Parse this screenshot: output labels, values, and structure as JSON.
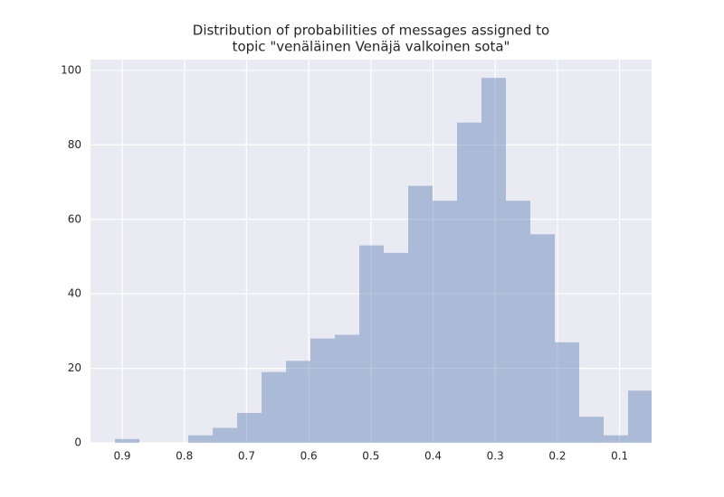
{
  "chart_data": {
    "type": "histogram",
    "title": [
      "Distribution of probabilities of messages assigned to",
      "topic \"venäläinen Venäjä valkoinen sota\""
    ],
    "bins": [
      0.9116,
      0.8723,
      0.833,
      0.7937,
      0.7544,
      0.7151,
      0.6758,
      0.6365,
      0.5972,
      0.5579,
      0.5186,
      0.4793,
      0.44,
      0.4007,
      0.3614,
      0.3221,
      0.2828,
      0.2435,
      0.2042,
      0.1649,
      0.1256,
      0.0863,
      0.047
    ],
    "counts": [
      1,
      0,
      0,
      2,
      4,
      8,
      19,
      22,
      28,
      29,
      53,
      51,
      69,
      65,
      86,
      98,
      65,
      56,
      27,
      7,
      2,
      14
    ],
    "color": "#4c72b0",
    "xlim": [
      0.951,
      0.0485
    ],
    "xticks": [
      0.9,
      0.8,
      0.7,
      0.6,
      0.5,
      0.4,
      0.3,
      0.2,
      0.1
    ],
    "ylim": [
      0,
      102.9
    ],
    "yticks": [
      0,
      20,
      40,
      60,
      80,
      100
    ],
    "grid": true
  }
}
